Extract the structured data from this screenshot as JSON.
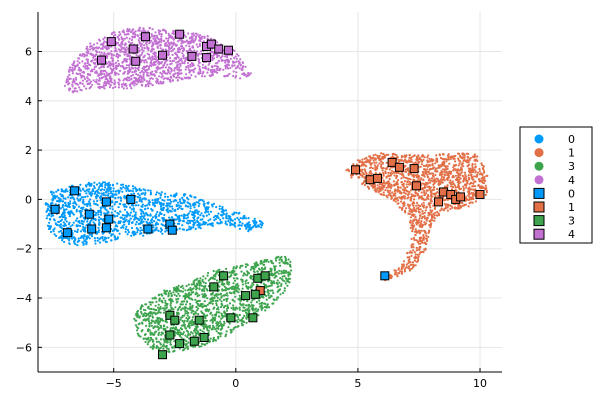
{
  "chart_data": {
    "type": "scatter",
    "title": "",
    "xlabel": "",
    "ylabel": "",
    "xlim": [
      -8.1,
      10.9
    ],
    "ylim": [
      -7.0,
      7.6
    ],
    "grid": true,
    "legend_position": "right",
    "x_ticks": [
      -5,
      0,
      5,
      10
    ],
    "y_ticks": [
      -6,
      -4,
      -2,
      0,
      2,
      4,
      6
    ],
    "x_tick_labels": [
      "−5",
      "0",
      "5",
      "10"
    ],
    "y_tick_labels": [
      "−6",
      "−4",
      "−2",
      "0",
      "2",
      "4",
      "6"
    ],
    "clusters": [
      {
        "label": "0",
        "kind": "blob",
        "color": "#009AFA",
        "count": 1400,
        "outline": [
          [
            -7.8,
            -0.2
          ],
          [
            -7.6,
            0.3
          ],
          [
            -7.0,
            0.5
          ],
          [
            -6.0,
            0.7
          ],
          [
            -5.0,
            0.7
          ],
          [
            -4.0,
            0.5
          ],
          [
            -3.0,
            0.3
          ],
          [
            -2.0,
            0.2
          ],
          [
            -1.0,
            -0.1
          ],
          [
            0.0,
            -0.5
          ],
          [
            1.0,
            -0.8
          ],
          [
            1.2,
            -1.1
          ],
          [
            0.5,
            -1.3
          ],
          [
            -0.5,
            -1.0
          ],
          [
            -1.5,
            -1.2
          ],
          [
            -2.5,
            -1.3
          ],
          [
            -3.5,
            -1.5
          ],
          [
            -4.5,
            -1.5
          ],
          [
            -5.5,
            -1.8
          ],
          [
            -6.5,
            -1.9
          ],
          [
            -7.2,
            -1.7
          ],
          [
            -7.7,
            -1.2
          ]
        ]
      },
      {
        "label": "1",
        "kind": "blob",
        "color": "#E26F46",
        "count": 1600,
        "outline": [
          [
            4.5,
            1.2
          ],
          [
            5.0,
            1.6
          ],
          [
            6.0,
            1.9
          ],
          [
            7.0,
            1.8
          ],
          [
            8.0,
            1.8
          ],
          [
            9.0,
            1.9
          ],
          [
            10.0,
            1.8
          ],
          [
            10.3,
            1.0
          ],
          [
            10.3,
            0.2
          ],
          [
            9.5,
            -0.3
          ],
          [
            8.5,
            -0.5
          ],
          [
            8.0,
            -1.0
          ],
          [
            7.8,
            -2.0
          ],
          [
            7.3,
            -2.8
          ],
          [
            6.5,
            -3.2
          ],
          [
            6.0,
            -3.3
          ],
          [
            6.8,
            -2.6
          ],
          [
            7.2,
            -1.8
          ],
          [
            7.1,
            -0.8
          ],
          [
            6.5,
            -0.1
          ],
          [
            5.5,
            0.4
          ],
          [
            4.8,
            0.8
          ]
        ]
      },
      {
        "label": "3",
        "kind": "blob",
        "color": "#3DA44D",
        "count": 1500,
        "outline": [
          [
            -4.0,
            -4.4
          ],
          [
            -3.0,
            -3.7
          ],
          [
            -2.0,
            -3.4
          ],
          [
            -1.0,
            -2.9
          ],
          [
            0.0,
            -2.7
          ],
          [
            1.0,
            -2.5
          ],
          [
            2.0,
            -2.2
          ],
          [
            2.3,
            -2.6
          ],
          [
            2.2,
            -3.5
          ],
          [
            1.5,
            -4.3
          ],
          [
            0.5,
            -5.0
          ],
          [
            -0.5,
            -5.6
          ],
          [
            -1.5,
            -6.0
          ],
          [
            -2.5,
            -6.3
          ],
          [
            -3.4,
            -6.1
          ],
          [
            -4.0,
            -5.5
          ],
          [
            -4.2,
            -4.9
          ]
        ]
      },
      {
        "label": "4",
        "kind": "blob",
        "color": "#C271D2",
        "count": 1500,
        "outline": [
          [
            -7.0,
            4.6
          ],
          [
            -6.8,
            5.4
          ],
          [
            -6.0,
            6.3
          ],
          [
            -5.0,
            6.8
          ],
          [
            -4.0,
            7.0
          ],
          [
            -3.0,
            6.9
          ],
          [
            -2.0,
            6.8
          ],
          [
            -1.0,
            6.6
          ],
          [
            0.0,
            6.0
          ],
          [
            0.7,
            5.0
          ],
          [
            0.2,
            4.9
          ],
          [
            -1.0,
            5.0
          ],
          [
            -2.0,
            4.9
          ],
          [
            -3.0,
            4.7
          ],
          [
            -4.0,
            4.5
          ],
          [
            -5.0,
            4.5
          ],
          [
            -6.0,
            4.5
          ],
          [
            -6.7,
            4.3
          ]
        ]
      },
      {
        "label": "0",
        "kind": "markers",
        "color": "#009AFA",
        "points": [
          [
            6.1,
            -3.1
          ],
          [
            -6.6,
            0.35
          ],
          [
            -7.4,
            -0.4
          ],
          [
            -6.0,
            -0.6
          ],
          [
            -5.2,
            -0.8
          ],
          [
            -4.3,
            0.0
          ],
          [
            -5.3,
            -0.1
          ],
          [
            -6.9,
            -1.35
          ],
          [
            -5.9,
            -1.2
          ],
          [
            -5.3,
            -1.15
          ],
          [
            -2.7,
            -1.0
          ],
          [
            -2.6,
            -1.25
          ],
          [
            -3.6,
            -1.2
          ]
        ]
      },
      {
        "label": "1",
        "kind": "markers",
        "color": "#E26F46",
        "points": [
          [
            4.9,
            1.2
          ],
          [
            5.5,
            0.8
          ],
          [
            5.8,
            0.85
          ],
          [
            6.4,
            1.5
          ],
          [
            6.7,
            1.3
          ],
          [
            7.3,
            1.25
          ],
          [
            7.4,
            0.55
          ],
          [
            8.3,
            -0.1
          ],
          [
            8.5,
            0.3
          ],
          [
            8.8,
            0.2
          ],
          [
            9.0,
            0.0
          ],
          [
            9.2,
            0.1
          ],
          [
            10.0,
            0.2
          ],
          [
            1.0,
            -3.7
          ]
        ]
      },
      {
        "label": "3",
        "kind": "markers",
        "color": "#3DA44D",
        "points": [
          [
            -0.5,
            -3.1
          ],
          [
            0.9,
            -3.2
          ],
          [
            1.2,
            -3.1
          ],
          [
            -0.9,
            -3.55
          ],
          [
            0.4,
            -3.9
          ],
          [
            0.8,
            -3.85
          ],
          [
            -0.2,
            -4.8
          ],
          [
            0.7,
            -4.8
          ],
          [
            -2.7,
            -4.7
          ],
          [
            -2.5,
            -4.9
          ],
          [
            -1.5,
            -4.9
          ],
          [
            -2.7,
            -5.5
          ],
          [
            -1.3,
            -5.6
          ],
          [
            -1.7,
            -5.75
          ],
          [
            -2.3,
            -5.85
          ],
          [
            -3.0,
            -6.3
          ]
        ]
      },
      {
        "label": "4",
        "kind": "markers",
        "color": "#C271D2",
        "points": [
          [
            -5.1,
            6.4
          ],
          [
            -4.2,
            6.1
          ],
          [
            -3.7,
            6.6
          ],
          [
            -2.3,
            6.7
          ],
          [
            -1.2,
            6.2
          ],
          [
            -1.0,
            6.3
          ],
          [
            -0.7,
            6.1
          ],
          [
            -0.3,
            6.05
          ],
          [
            -4.1,
            5.6
          ],
          [
            -3.0,
            5.85
          ],
          [
            -1.8,
            5.8
          ],
          [
            -1.2,
            5.75
          ],
          [
            -5.5,
            5.65
          ]
        ]
      }
    ],
    "legend": [
      {
        "label": "0",
        "color": "#009AFA",
        "shape": "circle"
      },
      {
        "label": "1",
        "color": "#E26F46",
        "shape": "circle"
      },
      {
        "label": "3",
        "color": "#3DA44D",
        "shape": "circle"
      },
      {
        "label": "4",
        "color": "#C271D2",
        "shape": "circle"
      },
      {
        "label": "0",
        "color": "#009AFA",
        "shape": "square"
      },
      {
        "label": "1",
        "color": "#E26F46",
        "shape": "square"
      },
      {
        "label": "3",
        "color": "#3DA44D",
        "shape": "square"
      },
      {
        "label": "4",
        "color": "#C271D2",
        "shape": "square"
      }
    ]
  }
}
